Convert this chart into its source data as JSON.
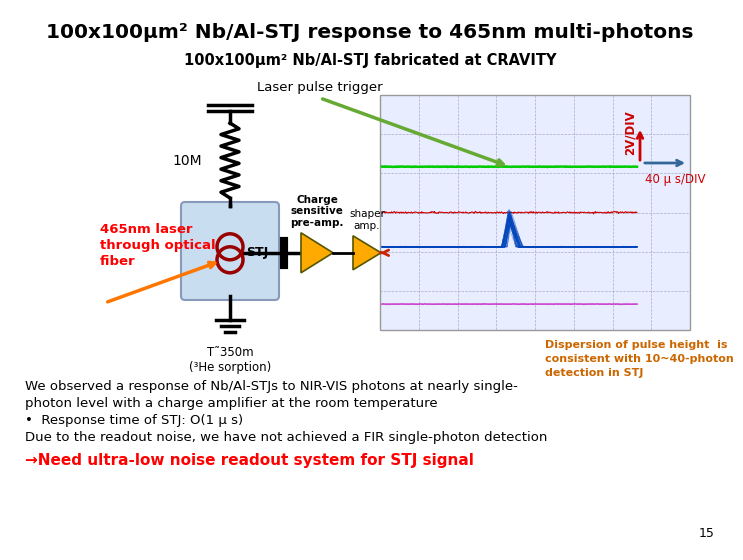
{
  "title": "100x100μm² Nb/Al-STJ response to 465nm multi-photons",
  "subtitle": "100x100μm² Nb/Al-STJ fabricated at CRAVITY",
  "laser_trigger_label": "Laser pulse trigger",
  "scale_v": "2V/DIV",
  "scale_t": "40 μ s/DIV",
  "label_10M": "10M",
  "label_laser": "465nm laser\nthrough optical\nfiber",
  "label_charge": "Charge\nsensitive\npre-amp.",
  "label_shaper": "shaper\namp.",
  "label_STJ": "STJ",
  "label_temp": "T˜350m\n(³He sorption)",
  "label_dispersion": "Dispersion of pulse height  is\nconsistent with 10~40-photon\ndetection in STJ",
  "text_body1": "We observed a response of Nb/Al-STJs to NIR-VIS photons at nearly single-",
  "text_body2": "photon level with a charge amplifier at the room temperature",
  "text_bullet": "•  Response time of STJ: O(1 μ s)",
  "text_body3": "Due to the readout noise, we have not achieved a FIR single-photon detection",
  "text_red": "→Need ultra-low noise readout system for STJ signal",
  "page_num": "15",
  "bg_color": "#ffffff",
  "title_color": "#000000",
  "red_text_color": "#ff0000",
  "dispersion_color": "#cc6600",
  "scope_bg": "#e8eeff",
  "scope_border": "#999999",
  "grid_color": "#aaaacc"
}
